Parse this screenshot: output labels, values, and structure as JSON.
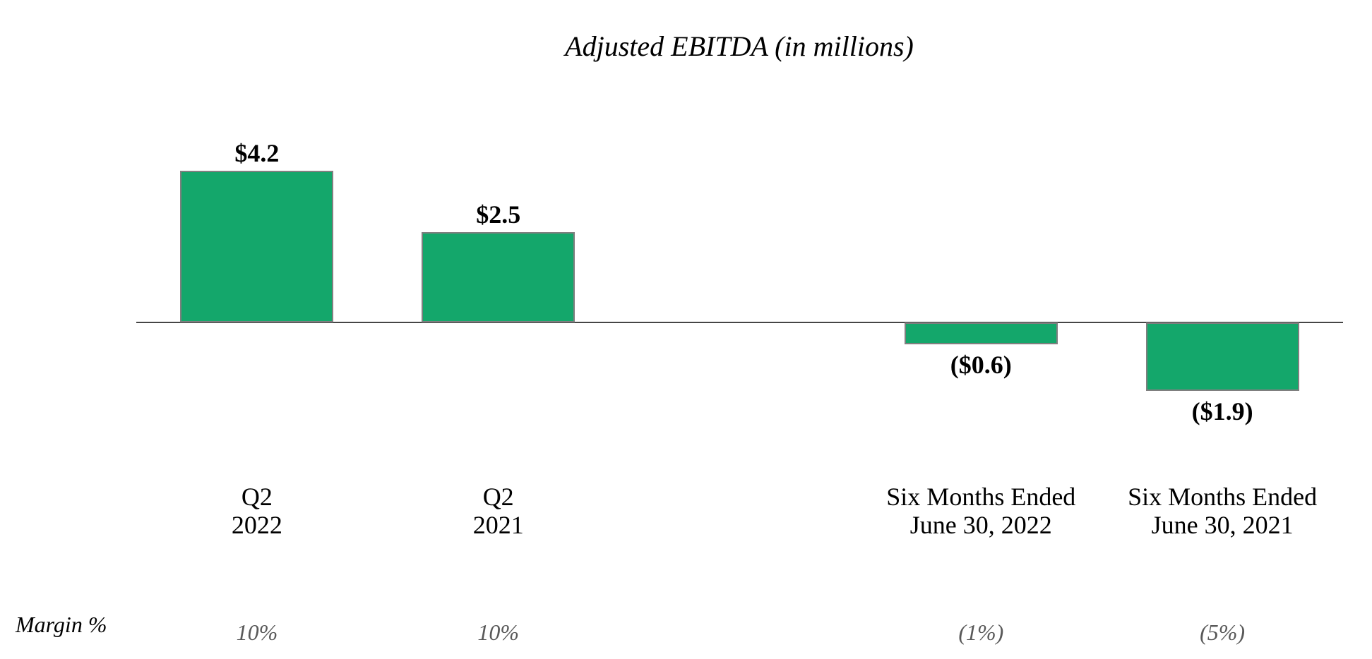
{
  "chart_data": {
    "type": "bar",
    "title": "Adjusted EBITDA (in millions)",
    "categories": [
      "Q2 2022",
      "Q2 2021",
      "Six Months Ended June 30, 2022",
      "Six Months Ended June 30, 2021"
    ],
    "category_lines": [
      [
        "Q2",
        "2022"
      ],
      [
        "Q2",
        "2021"
      ],
      [
        "Six Months Ended",
        "June 30, 2022"
      ],
      [
        "Six Months Ended",
        "June 30, 2021"
      ]
    ],
    "values": [
      4.2,
      2.5,
      -0.6,
      -1.9
    ],
    "value_labels": [
      "$4.2",
      "$2.5",
      "($0.6)",
      "($1.9)"
    ],
    "margin_axis_label": "Margin %",
    "margin_values": [
      "10%",
      "10%",
      "(1%)",
      "(5%)"
    ],
    "slots": [
      0,
      1,
      3,
      4
    ],
    "slot_count": 5,
    "ylim": [
      -2.2,
      4.8
    ],
    "grid": false,
    "legend": false,
    "xlabel": "",
    "ylabel": "",
    "bar_color": "#14A76B",
    "bar_border_color": "#7F7F7F",
    "axis_color": "#454545",
    "label_color": "#000000",
    "margin_value_color": "#595959"
  }
}
